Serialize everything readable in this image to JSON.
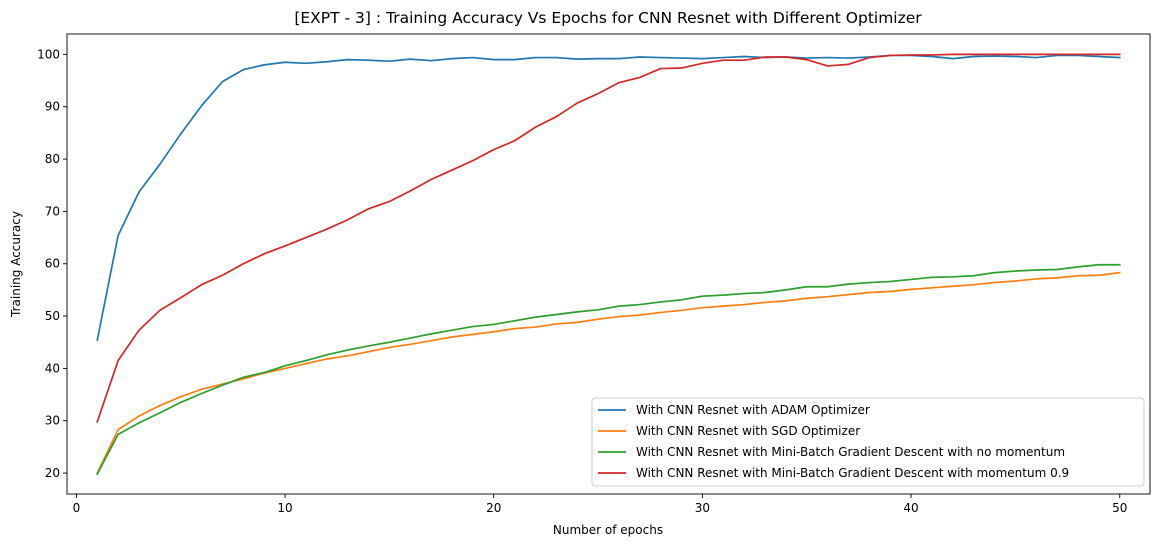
{
  "chart_data": {
    "type": "line",
    "title": "[EXPT - 3] : Training Accuracy Vs Epochs for CNN Resnet with Different Optimizer",
    "xlabel": "Number of epochs",
    "ylabel": "Training Accuracy",
    "xlim": [
      -0.45,
      51.45
    ],
    "ylim": [
      16.0,
      103.9
    ],
    "xticks": [
      0,
      10,
      20,
      30,
      40,
      50
    ],
    "yticks": [
      20,
      30,
      40,
      50,
      60,
      70,
      80,
      90,
      100
    ],
    "grid": false,
    "legend_position": "lower-right",
    "x": [
      1,
      2,
      3,
      4,
      5,
      6,
      7,
      8,
      9,
      10,
      11,
      12,
      13,
      14,
      15,
      16,
      17,
      18,
      19,
      20,
      21,
      22,
      23,
      24,
      25,
      26,
      27,
      28,
      29,
      30,
      31,
      32,
      33,
      34,
      35,
      36,
      37,
      38,
      39,
      40,
      41,
      42,
      43,
      44,
      45,
      46,
      47,
      48,
      49,
      50
    ],
    "series": [
      {
        "name": "With CNN Resnet with ADAM Optimizer",
        "color": "#1f77b4",
        "values": [
          45.4,
          65.4,
          73.7,
          79.0,
          84.8,
          90.2,
          94.8,
          97.1,
          98.0,
          98.5,
          98.3,
          98.6,
          99.0,
          98.9,
          98.7,
          99.1,
          98.8,
          99.2,
          99.4,
          99.0,
          99.0,
          99.4,
          99.4,
          99.1,
          99.2,
          99.2,
          99.5,
          99.4,
          99.3,
          99.2,
          99.4,
          99.6,
          99.4,
          99.5,
          99.3,
          99.4,
          99.3,
          99.5,
          99.8,
          99.8,
          99.6,
          99.2,
          99.6,
          99.7,
          99.6,
          99.4,
          99.8,
          99.8,
          99.6,
          99.4
        ]
      },
      {
        "name": "With CNN Resnet with SGD Optimizer",
        "color": "#ff7f0e",
        "values": [
          20.0,
          28.3,
          30.9,
          32.9,
          34.6,
          36.0,
          37.0,
          38.0,
          39.1,
          40.0,
          40.9,
          41.8,
          42.4,
          43.2,
          44.0,
          44.6,
          45.3,
          46.0,
          46.5,
          47.0,
          47.6,
          47.9,
          48.5,
          48.8,
          49.4,
          49.9,
          50.2,
          50.7,
          51.1,
          51.6,
          51.9,
          52.2,
          52.6,
          52.9,
          53.4,
          53.7,
          54.1,
          54.5,
          54.7,
          55.1,
          55.4,
          55.7,
          56.0,
          56.4,
          56.7,
          57.1,
          57.3,
          57.7,
          57.8,
          58.3
        ]
      },
      {
        "name": "With CNN Resnet with Mini-Batch Gradient Descent with no momentum",
        "color": "#2ca02c",
        "values": [
          19.8,
          27.4,
          29.6,
          31.5,
          33.5,
          35.2,
          36.8,
          38.3,
          39.2,
          40.5,
          41.5,
          42.6,
          43.5,
          44.3,
          45.0,
          45.8,
          46.6,
          47.3,
          48.0,
          48.4,
          49.1,
          49.8,
          50.3,
          50.8,
          51.2,
          51.9,
          52.2,
          52.7,
          53.1,
          53.8,
          54.0,
          54.3,
          54.5,
          55.0,
          55.6,
          55.6,
          56.1,
          56.4,
          56.6,
          57.0,
          57.4,
          57.5,
          57.7,
          58.3,
          58.6,
          58.8,
          58.9,
          59.4,
          59.8,
          59.8
        ]
      },
      {
        "name": "With CNN Resnet with Mini-Batch Gradient Descent with momentum 0.9",
        "color": "#d62728",
        "values": [
          29.8,
          41.5,
          47.3,
          51.1,
          53.5,
          56.0,
          57.8,
          60.0,
          61.9,
          63.4,
          65.0,
          66.6,
          68.4,
          70.5,
          71.9,
          73.9,
          76.1,
          77.9,
          79.7,
          81.8,
          83.5,
          86.1,
          88.1,
          90.7,
          92.5,
          94.6,
          95.6,
          97.3,
          97.4,
          98.3,
          98.9,
          98.9,
          99.5,
          99.5,
          99.0,
          97.8,
          98.1,
          99.4,
          99.8,
          99.9,
          99.9,
          100.0,
          100.0,
          100.0,
          100.0,
          100.0,
          100.0,
          100.0,
          100.0,
          100.0
        ]
      }
    ]
  }
}
